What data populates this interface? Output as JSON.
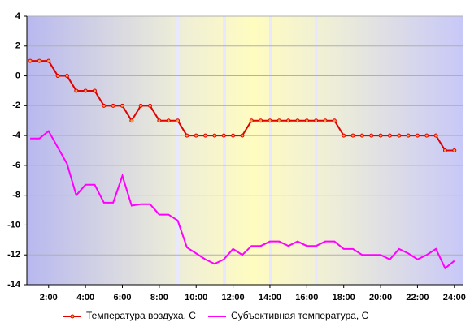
{
  "chart_data": {
    "type": "line",
    "x": [
      1,
      1.5,
      2,
      2.5,
      3,
      3.5,
      4,
      4.5,
      5,
      5.5,
      6,
      6.5,
      7,
      7.5,
      8,
      8.5,
      9,
      9.5,
      10,
      10.5,
      11,
      11.5,
      12,
      12.5,
      13,
      13.5,
      14,
      14.5,
      15,
      15.5,
      16,
      16.5,
      17,
      17.5,
      18,
      18.5,
      19,
      19.5,
      20,
      20.5,
      21,
      21.5,
      22,
      22.5,
      23,
      23.5,
      24
    ],
    "series": [
      {
        "name": "Температура воздуха, С",
        "color": "#e00000",
        "marker": true,
        "values": [
          1,
          1,
          1,
          0,
          0,
          -1,
          -1,
          -1,
          -2,
          -2,
          -2,
          -3,
          -2,
          -2,
          -3,
          -3,
          -3,
          -4,
          -4,
          -4,
          -4,
          -4,
          -4,
          -4,
          -3,
          -3,
          -3,
          -3,
          -3,
          -3,
          -3,
          -3,
          -3,
          -3,
          -4,
          -4,
          -4,
          -4,
          -4,
          -4,
          -4,
          -4,
          -4,
          -4,
          -4,
          -5,
          -5
        ]
      },
      {
        "name": "Субъективная температура, С",
        "color": "#ff00ff",
        "marker": false,
        "values": [
          -4.2,
          -4.2,
          -3.7,
          -4.8,
          -5.9,
          -8.0,
          -7.3,
          -7.3,
          -8.5,
          -8.5,
          -6.7,
          -8.7,
          -8.6,
          -8.6,
          -9.3,
          -9.3,
          -9.7,
          -11.5,
          -11.9,
          -12.3,
          -12.6,
          -12.3,
          -11.6,
          -12.0,
          -11.4,
          -11.4,
          -11.1,
          -11.1,
          -11.4,
          -11.1,
          -11.4,
          -11.4,
          -11.1,
          -11.1,
          -11.6,
          -11.6,
          -12.0,
          -12.0,
          -12.0,
          -12.3,
          -11.6,
          -11.9,
          -12.3,
          -12.0,
          -11.6,
          -12.9,
          -12.4
        ]
      }
    ],
    "xlim": [
      0.82,
      24.45
    ],
    "xticks": [
      {
        "value": 2,
        "label": "2:00"
      },
      {
        "value": 4,
        "label": "4:00"
      },
      {
        "value": 6,
        "label": "6:00"
      },
      {
        "value": 8,
        "label": "8:00"
      },
      {
        "value": 10,
        "label": "10:00"
      },
      {
        "value": 12,
        "label": "12:00"
      },
      {
        "value": 14,
        "label": "14:00"
      },
      {
        "value": 16,
        "label": "16:00"
      },
      {
        "value": 18,
        "label": "18:00"
      },
      {
        "value": 20,
        "label": "20:00"
      },
      {
        "value": 22,
        "label": "22:00"
      },
      {
        "value": 24,
        "label": "24:00"
      }
    ],
    "ylim": [
      -14,
      4
    ],
    "yticks": [
      4,
      2,
      0,
      -2,
      -4,
      -6,
      -8,
      -10,
      -12,
      -14
    ],
    "grid": true,
    "legend": "bottom"
  }
}
